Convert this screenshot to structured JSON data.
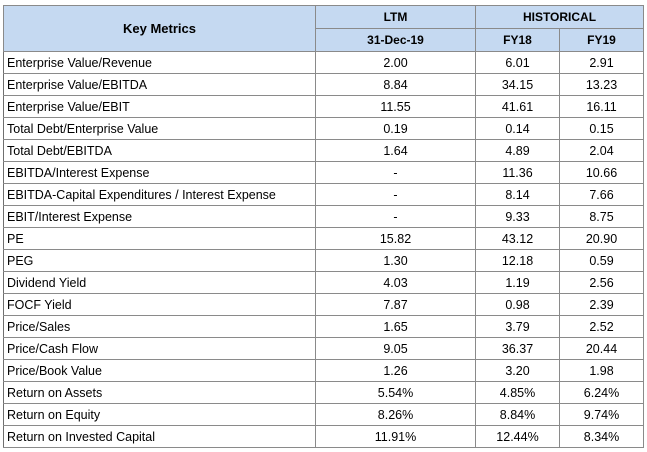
{
  "header": {
    "key_metrics": "Key Metrics",
    "ltm": "LTM",
    "historical": "HISTORICAL",
    "ltm_date": "31-Dec-19",
    "fy18": "FY18",
    "fy19": "FY19"
  },
  "rows": [
    {
      "label": "Enterprise Value/Revenue",
      "ltm": "2.00",
      "fy18": "6.01",
      "fy19": "2.91"
    },
    {
      "label": "Enterprise Value/EBITDA",
      "ltm": "8.84",
      "fy18": "34.15",
      "fy19": "13.23"
    },
    {
      "label": "Enterprise Value/EBIT",
      "ltm": "11.55",
      "fy18": "41.61",
      "fy19": "16.11"
    },
    {
      "label": "Total Debt/Enterprise Value",
      "ltm": "0.19",
      "fy18": "0.14",
      "fy19": "0.15"
    },
    {
      "label": "Total Debt/EBITDA",
      "ltm": "1.64",
      "fy18": "4.89",
      "fy19": "2.04"
    },
    {
      "label": "EBITDA/Interest Expense",
      "ltm": "-",
      "fy18": "11.36",
      "fy19": "10.66"
    },
    {
      "label": "EBITDA-Capital Expenditures / Interest Expense",
      "ltm": "-",
      "fy18": "8.14",
      "fy19": "7.66"
    },
    {
      "label": "EBIT/Interest Expense",
      "ltm": "-",
      "fy18": "9.33",
      "fy19": "8.75"
    },
    {
      "label": "PE",
      "ltm": "15.82",
      "fy18": "43.12",
      "fy19": "20.90"
    },
    {
      "label": "PEG",
      "ltm": "1.30",
      "fy18": "12.18",
      "fy19": "0.59"
    },
    {
      "label": "Dividend Yield",
      "ltm": "4.03",
      "fy18": "1.19",
      "fy19": "2.56"
    },
    {
      "label": "FOCF Yield",
      "ltm": "7.87",
      "fy18": "0.98",
      "fy19": "2.39"
    },
    {
      "label": "Price/Sales",
      "ltm": "1.65",
      "fy18": "3.79",
      "fy19": "2.52"
    },
    {
      "label": "Price/Cash Flow",
      "ltm": "9.05",
      "fy18": "36.37",
      "fy19": "20.44"
    },
    {
      "label": "Price/Book Value",
      "ltm": "1.26",
      "fy18": "3.20",
      "fy19": "1.98"
    },
    {
      "label": "Return on Assets",
      "ltm": "5.54%",
      "fy18": "4.85%",
      "fy19": "6.24%"
    },
    {
      "label": "Return on Equity",
      "ltm": "8.26%",
      "fy18": "8.84%",
      "fy19": "9.74%"
    },
    {
      "label": "Return on Invested Capital",
      "ltm": "11.91%",
      "fy18": "12.44%",
      "fy19": "8.34%"
    }
  ],
  "colors": {
    "header_fill": "#c5d9f1",
    "grid_line": "#8a8a8a"
  }
}
